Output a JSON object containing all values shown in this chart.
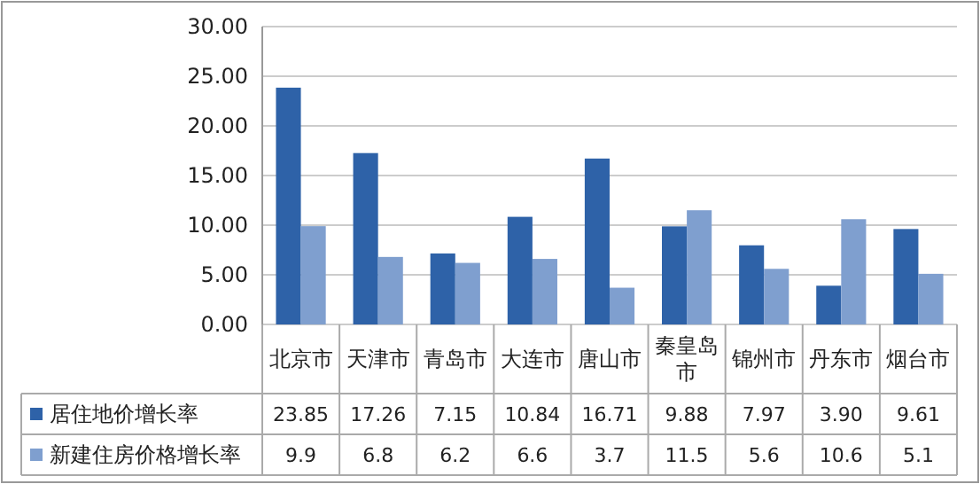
{
  "chart_data": {
    "type": "bar",
    "categories": [
      "北京市",
      "天津市",
      "青岛市",
      "大连市",
      "唐山市",
      "秦皇岛市",
      "锦州市",
      "丹东市",
      "烟台市"
    ],
    "series": [
      {
        "name": "居住地价增长率",
        "color": "#2e62a8",
        "values": [
          23.85,
          17.26,
          7.15,
          10.84,
          16.71,
          9.88,
          7.97,
          3.9,
          9.61
        ],
        "value_labels": [
          "23.85",
          "17.26",
          "7.15",
          "10.84",
          "16.71",
          "9.88",
          "7.97",
          "3.90",
          "9.61"
        ]
      },
      {
        "name": "新建住房价格增长率",
        "color": "#7f9fcf",
        "values": [
          9.9,
          6.8,
          6.2,
          6.6,
          3.7,
          11.5,
          5.6,
          10.6,
          5.1
        ],
        "value_labels": [
          "9.9",
          "6.8",
          "6.2",
          "6.6",
          "3.7",
          "11.5",
          "5.6",
          "10.6",
          "5.1"
        ]
      }
    ],
    "ylim": [
      0,
      30
    ],
    "yticks": [
      {
        "value": 0,
        "label": "0.00"
      },
      {
        "value": 5,
        "label": "5.00"
      },
      {
        "value": 10,
        "label": "10.00"
      },
      {
        "value": 15,
        "label": "15.00"
      },
      {
        "value": 20,
        "label": "20.00"
      },
      {
        "value": 25,
        "label": "25.00"
      },
      {
        "value": 30,
        "label": "30.00"
      }
    ],
    "grid": "y",
    "legend": "bottom"
  }
}
